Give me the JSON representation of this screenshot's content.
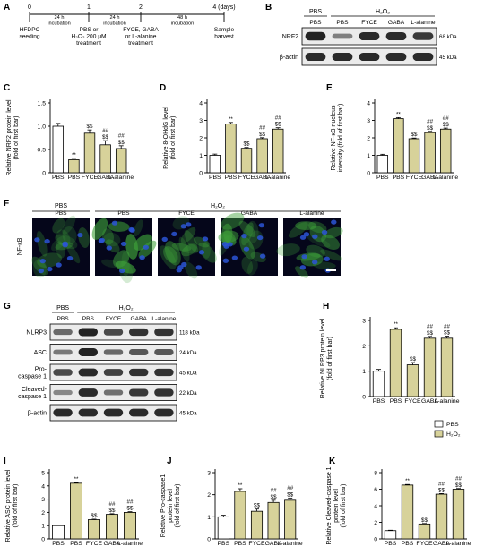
{
  "colors": {
    "pbs": "#ffffff",
    "h2o2": "#d7d29a",
    "stroke": "#000000",
    "blot_bg": "#ebebeb",
    "band": "#1a1a1a",
    "cell_bg": "#05061a",
    "nucleus": "#2b55d6",
    "cytoplasm": "#3fa33a"
  },
  "panels": {
    "A": {
      "letter": "A",
      "timepoints": [
        "0",
        "1",
        "2",
        "4 (days)"
      ],
      "intervals": [
        "24 h\nincubation",
        "24 h\nincubation",
        "48 h\nincubation"
      ],
      "steps": [
        "HFDPC\nseeding",
        "PBS or\nH₂O₂ 200 μM\ntreatment",
        "FYCE, GABA\nor L-alanine\ntreatment",
        "Sample\nharvest"
      ]
    },
    "B": {
      "letter": "B",
      "group_pbs": "PBS",
      "group_h2o2": "H₂O₂",
      "lanes": [
        "PBS",
        "PBS",
        "FYCE",
        "GABA",
        "L-alanine"
      ],
      "rows": [
        {
          "label": "NRF2",
          "kda": "68 kDa",
          "intensity": [
            0.95,
            0.35,
            0.9,
            0.9,
            0.8
          ]
        },
        {
          "label": "β-actin",
          "kda": "45 kDa",
          "intensity": [
            0.9,
            0.9,
            0.9,
            0.9,
            0.9
          ]
        }
      ]
    },
    "F": {
      "letter": "F",
      "group_pbs": "PBS",
      "group_h2o2": "H₂O₂",
      "lanes": [
        "PBS",
        "PBS",
        "FYCE",
        "GABA",
        "L-alanine"
      ],
      "row_label": "NF-κB"
    },
    "G": {
      "letter": "G",
      "group_pbs": "PBS",
      "group_h2o2": "H₂O₂",
      "lanes": [
        "PBS",
        "PBS",
        "FYCE",
        "GABA",
        "L-alanine"
      ],
      "rows": [
        {
          "label": "NLRP3",
          "kda": "118 kDa",
          "intensity": [
            0.5,
            0.95,
            0.7,
            0.85,
            0.85
          ]
        },
        {
          "label": "ASC",
          "kda": "24 kDa",
          "intensity": [
            0.4,
            0.95,
            0.5,
            0.6,
            0.6
          ]
        },
        {
          "label": "Pro-\ncaspase 1",
          "kda": "45 kDa",
          "intensity": [
            0.7,
            0.9,
            0.75,
            0.85,
            0.85
          ]
        },
        {
          "label": "Cleaved-\ncaspase 1",
          "kda": "22 kDa",
          "intensity": [
            0.3,
            0.9,
            0.45,
            0.8,
            0.85
          ]
        },
        {
          "label": "β-actin",
          "kda": "45 kDa",
          "intensity": [
            0.9,
            0.9,
            0.9,
            0.9,
            0.9
          ]
        }
      ]
    },
    "legend": {
      "items": [
        "PBS",
        "H₂O₂"
      ]
    }
  },
  "chart_data": [
    {
      "id": "C",
      "letter": "C",
      "type": "bar",
      "categories": [
        "PBS",
        "PBS",
        "FYCE",
        "GABA",
        "L-alanine"
      ],
      "values": [
        1.0,
        0.28,
        0.85,
        0.6,
        0.52
      ],
      "errors": [
        0.06,
        0.03,
        0.07,
        0.09,
        0.06
      ],
      "marks": [
        "",
        "**",
        "$$",
        "##\n$$",
        "##\n$$"
      ],
      "ylabel": "Relative NRF2 protein level\n(fold of first bar)",
      "ylim": [
        0,
        1.5
      ],
      "yticks": [
        "0",
        "0.5",
        "1.0",
        "1.5"
      ],
      "group": [
        "pbs",
        "h2o2",
        "h2o2",
        "h2o2",
        "h2o2"
      ]
    },
    {
      "id": "D",
      "letter": "D",
      "type": "bar",
      "categories": [
        "PBS",
        "PBS",
        "FYCE",
        "GABA",
        "L-alanine"
      ],
      "values": [
        1.0,
        2.8,
        1.4,
        1.95,
        2.5
      ],
      "errors": [
        0.07,
        0.08,
        0.05,
        0.06,
        0.08
      ],
      "marks": [
        "",
        "**",
        "$$",
        "##\n$$",
        "##\n$$"
      ],
      "ylabel": "Relative 8-OHdG level\n(fold of first bar)",
      "ylim": [
        0,
        4
      ],
      "yticks": [
        "0",
        "1",
        "2",
        "3",
        "4"
      ],
      "group": [
        "pbs",
        "h2o2",
        "h2o2",
        "h2o2",
        "h2o2"
      ]
    },
    {
      "id": "E",
      "letter": "E",
      "type": "bar",
      "categories": [
        "PBS",
        "PBS",
        "FYCE",
        "GABA",
        "L-alanine"
      ],
      "values": [
        1.0,
        3.1,
        1.95,
        2.3,
        2.5
      ],
      "errors": [
        0.06,
        0.06,
        0.04,
        0.07,
        0.06
      ],
      "marks": [
        "",
        "**",
        "$$",
        "##\n$$",
        "##\n$$"
      ],
      "ylabel": "Relative NF-κB nucleus\nintensity (fold of first bar)",
      "ylim": [
        0,
        4
      ],
      "yticks": [
        "0",
        "1",
        "2",
        "3",
        "4"
      ],
      "group": [
        "pbs",
        "h2o2",
        "h2o2",
        "h2o2",
        "h2o2"
      ]
    },
    {
      "id": "H",
      "letter": "H",
      "type": "bar",
      "categories": [
        "PBS",
        "PBS",
        "FYCE",
        "GABA",
        "L-alanine"
      ],
      "values": [
        1.0,
        2.65,
        1.25,
        2.3,
        2.3
      ],
      "errors": [
        0.07,
        0.06,
        0.09,
        0.07,
        0.08
      ],
      "marks": [
        "",
        "**",
        "$$",
        "##\n$$",
        "##\n$$"
      ],
      "ylabel": "Relative NLRP3 protein level\n(fold of first bar)",
      "ylim": [
        0,
        3
      ],
      "yticks": [
        "0",
        "1",
        "2",
        "3"
      ],
      "group": [
        "pbs",
        "h2o2",
        "h2o2",
        "h2o2",
        "h2o2"
      ]
    },
    {
      "id": "I",
      "letter": "I",
      "type": "bar",
      "categories": [
        "PBS",
        "PBS",
        "FYCE",
        "GABA",
        "L-alanine"
      ],
      "values": [
        1.0,
        4.2,
        1.45,
        1.85,
        2.0
      ],
      "errors": [
        0.04,
        0.05,
        0.04,
        0.05,
        0.05
      ],
      "marks": [
        "",
        "**",
        "$$",
        "##\n$$",
        "##\n$$"
      ],
      "ylabel": "Relative ASC protein level\n(fold of first bar)",
      "ylim": [
        0,
        5
      ],
      "yticks": [
        "0",
        "1",
        "2",
        "3",
        "4",
        "5"
      ],
      "group": [
        "pbs",
        "h2o2",
        "h2o2",
        "h2o2",
        "h2o2"
      ]
    },
    {
      "id": "J",
      "letter": "J",
      "type": "bar",
      "categories": [
        "PBS",
        "PBS",
        "FYCE",
        "GABA",
        "L-alanine"
      ],
      "values": [
        1.0,
        2.15,
        1.25,
        1.65,
        1.75
      ],
      "errors": [
        0.07,
        0.12,
        0.1,
        0.1,
        0.1
      ],
      "marks": [
        "",
        "**",
        "$$",
        "##\n$$",
        "##\n$$"
      ],
      "ylabel": "Relative Pro-caspase1\nprotein level\n(fold of first bar)",
      "ylim": [
        0,
        3
      ],
      "yticks": [
        "0",
        "1",
        "2",
        "3"
      ],
      "group": [
        "pbs",
        "h2o2",
        "h2o2",
        "h2o2",
        "h2o2"
      ]
    },
    {
      "id": "K",
      "letter": "K",
      "type": "bar",
      "categories": [
        "PBS",
        "PBS",
        "FYCE",
        "GABA",
        "L-alanine"
      ],
      "values": [
        1.0,
        6.5,
        1.8,
        5.4,
        6.0
      ],
      "errors": [
        0.05,
        0.07,
        0.06,
        0.07,
        0.08
      ],
      "marks": [
        "",
        "**",
        "$$",
        "##\n$$",
        "##\n$$"
      ],
      "ylabel": "Relative Cleaved-caspase 1\nprotein level\n(fold of first bar)",
      "ylim": [
        0,
        8
      ],
      "yticks": [
        "0",
        "2",
        "4",
        "6",
        "8"
      ],
      "group": [
        "pbs",
        "h2o2",
        "h2o2",
        "h2o2",
        "h2o2"
      ]
    }
  ]
}
